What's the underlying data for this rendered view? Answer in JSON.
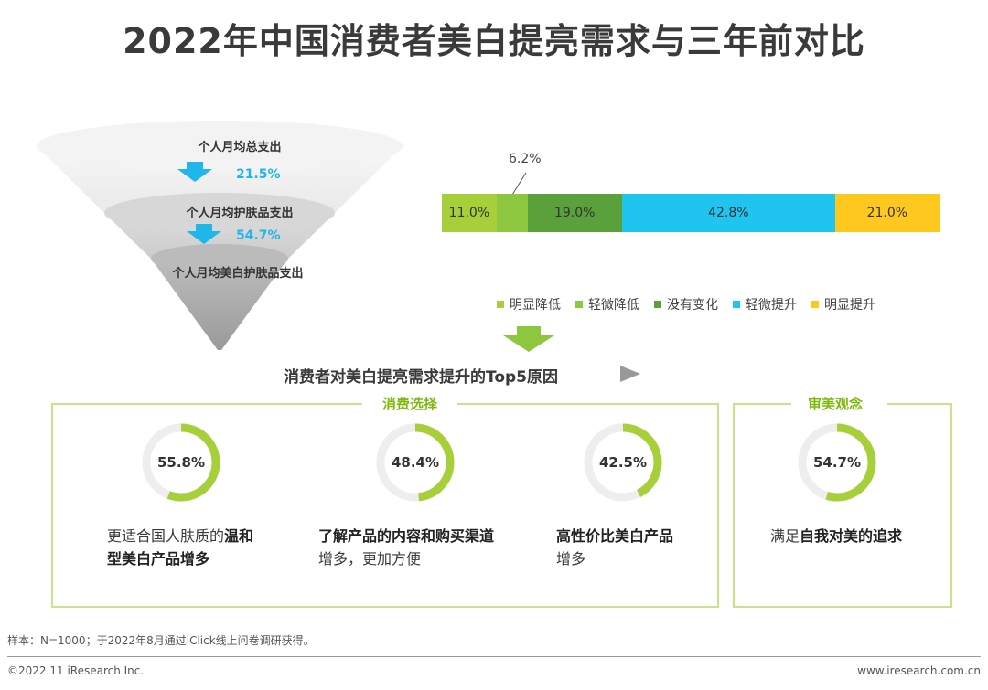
{
  "title": "2022年中国消费者美白提亮需求与三年前对比",
  "funnel": {
    "levels": [
      "个人月均总支出",
      "个人月均护肤品支出",
      "个人月均美白护肤品支出"
    ],
    "ratios": [
      "21.5%",
      "54.7%"
    ]
  },
  "chart_data": [
    {
      "type": "bar",
      "orientation": "horizontal-stacked-100",
      "categories": [
        "明显降低",
        "轻微降低",
        "没有变化",
        "轻微提升",
        "明显提升"
      ],
      "values": [
        11.0,
        6.2,
        19.0,
        42.8,
        21.0
      ],
      "labels": [
        "11.0%",
        "6.2%",
        "19.0%",
        "42.8%",
        "21.0%"
      ],
      "colors": [
        "#a6cf3a",
        "#8dc63f",
        "#5aa13c",
        "#1fc4ef",
        "#ffc81e"
      ],
      "legend": "bottom"
    },
    {
      "type": "pie",
      "style": "donut",
      "series": [
        {
          "label": "55.8%",
          "value": 55.8
        },
        {
          "label": "48.4%",
          "value": 48.4
        },
        {
          "label": "42.5%",
          "value": 42.5
        },
        {
          "label": "54.7%",
          "value": 54.7
        }
      ]
    }
  ],
  "reasons_title": "消费者对美白提亮需求提升的Top5原因",
  "groups": [
    {
      "label": "消费选择"
    },
    {
      "label": "审美观念"
    }
  ],
  "reasons": [
    {
      "pct": "55.8%",
      "line1_plain": "更适合国人肤质的",
      "line1_bold": "温和",
      "line2_bold": "型美白产品增多",
      "line2_plain": ""
    },
    {
      "pct": "48.4%",
      "line1_plain": "",
      "line1_bold": "了解产品的内容和购买渠道",
      "line2_bold": "",
      "line2_plain": "增多，更加方便"
    },
    {
      "pct": "42.5%",
      "line1_plain": "",
      "line1_bold": "高性价比美白产品",
      "line2_bold": "",
      "line2_plain": "增多"
    },
    {
      "pct": "54.7%",
      "line1_plain": "满足",
      "line1_bold": "自我对美的追求",
      "line2_bold": "",
      "line2_plain": ""
    }
  ],
  "colors": {
    "ring": "#a6cf3a",
    "ring_track": "#eeeeee",
    "arrow_blue": "#1fb6ea",
    "arrow_green": "#8dc63f",
    "box_border": "#c9e38b",
    "group_label": "#7fb80e"
  },
  "footnote": "样本：N=1000；于2022年8月通过iClick线上问卷调研获得。",
  "copyright": "©2022.11 iResearch Inc.",
  "site": "www.iresearch.com.cn"
}
